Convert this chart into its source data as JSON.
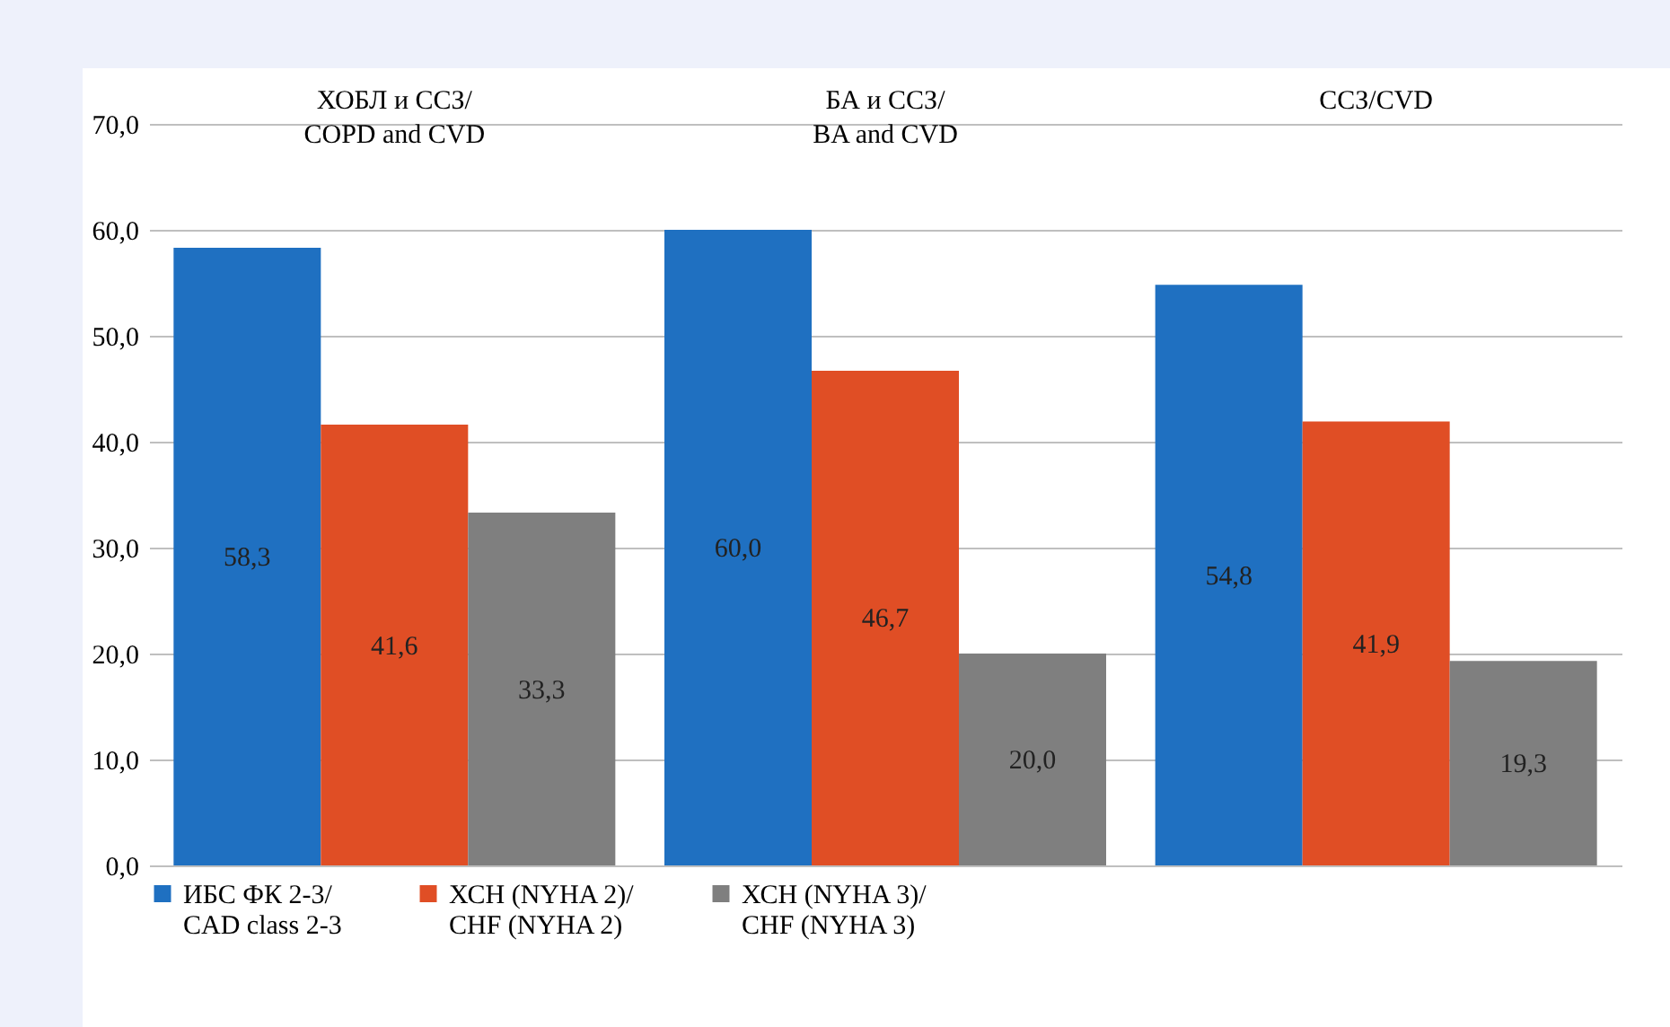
{
  "chart_data": {
    "type": "bar",
    "categories": [
      "ХОБЛ и ССЗ/\nCOPD and CVD",
      "БА и ССЗ/\nBA and CVD",
      "ССЗ/CVD"
    ],
    "series": [
      {
        "name": "ИБС ФК 2-3/\nCAD class 2-3",
        "color": "#1f70c1",
        "values": [
          58.3,
          60.0,
          54.8
        ],
        "value_labels": [
          "58,3",
          "60,0",
          "54,8"
        ]
      },
      {
        "name": "ХСН (NYHA 2)/\nCHF (NYHA 2)",
        "color": "#e04e25",
        "values": [
          41.6,
          46.7,
          41.9
        ],
        "value_labels": [
          "41,6",
          "46,7",
          "41,9"
        ]
      },
      {
        "name": "ХСН (NYHA 3)/\nCHF (NYHA 3)",
        "color": "#7f7f7f",
        "values": [
          33.3,
          20.0,
          19.3
        ],
        "value_labels": [
          "33,3",
          "20,0",
          "19,3"
        ]
      }
    ],
    "ylim": [
      0,
      70
    ],
    "yticks": [
      {
        "value": 0,
        "label": "0,0"
      },
      {
        "value": 10,
        "label": "10,0"
      },
      {
        "value": 20,
        "label": "20,0"
      },
      {
        "value": 30,
        "label": "30,0"
      },
      {
        "value": 40,
        "label": "40,0"
      },
      {
        "value": 50,
        "label": "50,0"
      },
      {
        "value": 60,
        "label": "60,0"
      },
      {
        "value": 70,
        "label": "70,0"
      }
    ],
    "grid": "y",
    "legend": "bottom"
  }
}
